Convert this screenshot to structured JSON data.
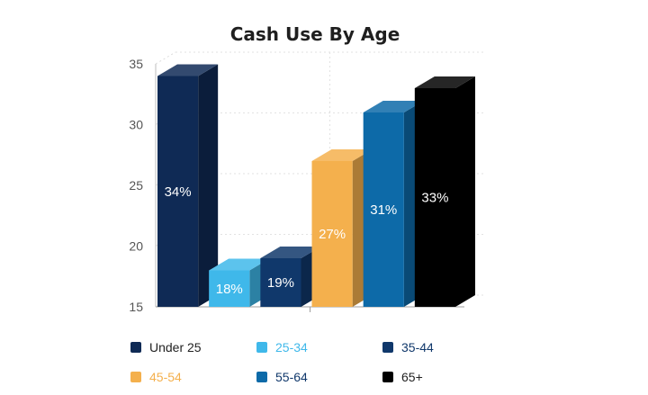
{
  "chart_data": {
    "type": "bar",
    "title": "Cash Use By Age",
    "categories": [
      "Under 25",
      "25-34",
      "35-44",
      "45-54",
      "55-64",
      "65+"
    ],
    "values": [
      34,
      18,
      19,
      27,
      31,
      33
    ],
    "data_labels": [
      "34%",
      "18%",
      "19%",
      "27%",
      "31%",
      "33%"
    ],
    "colors": [
      "#0f2a55",
      "#3fb8ea",
      "#10386b",
      "#f4b04d",
      "#0d6aa8",
      "#000000"
    ],
    "legend_text_colors": [
      "#222222",
      "#3fb8ea",
      "#10386b",
      "#f4b04d",
      "#10386b",
      "#222222"
    ],
    "ylim": [
      15,
      35
    ],
    "yticks": [
      "15",
      "20",
      "25",
      "30",
      "35"
    ],
    "xlabel": "",
    "ylabel": "",
    "grid": true,
    "legend_position": "bottom"
  }
}
